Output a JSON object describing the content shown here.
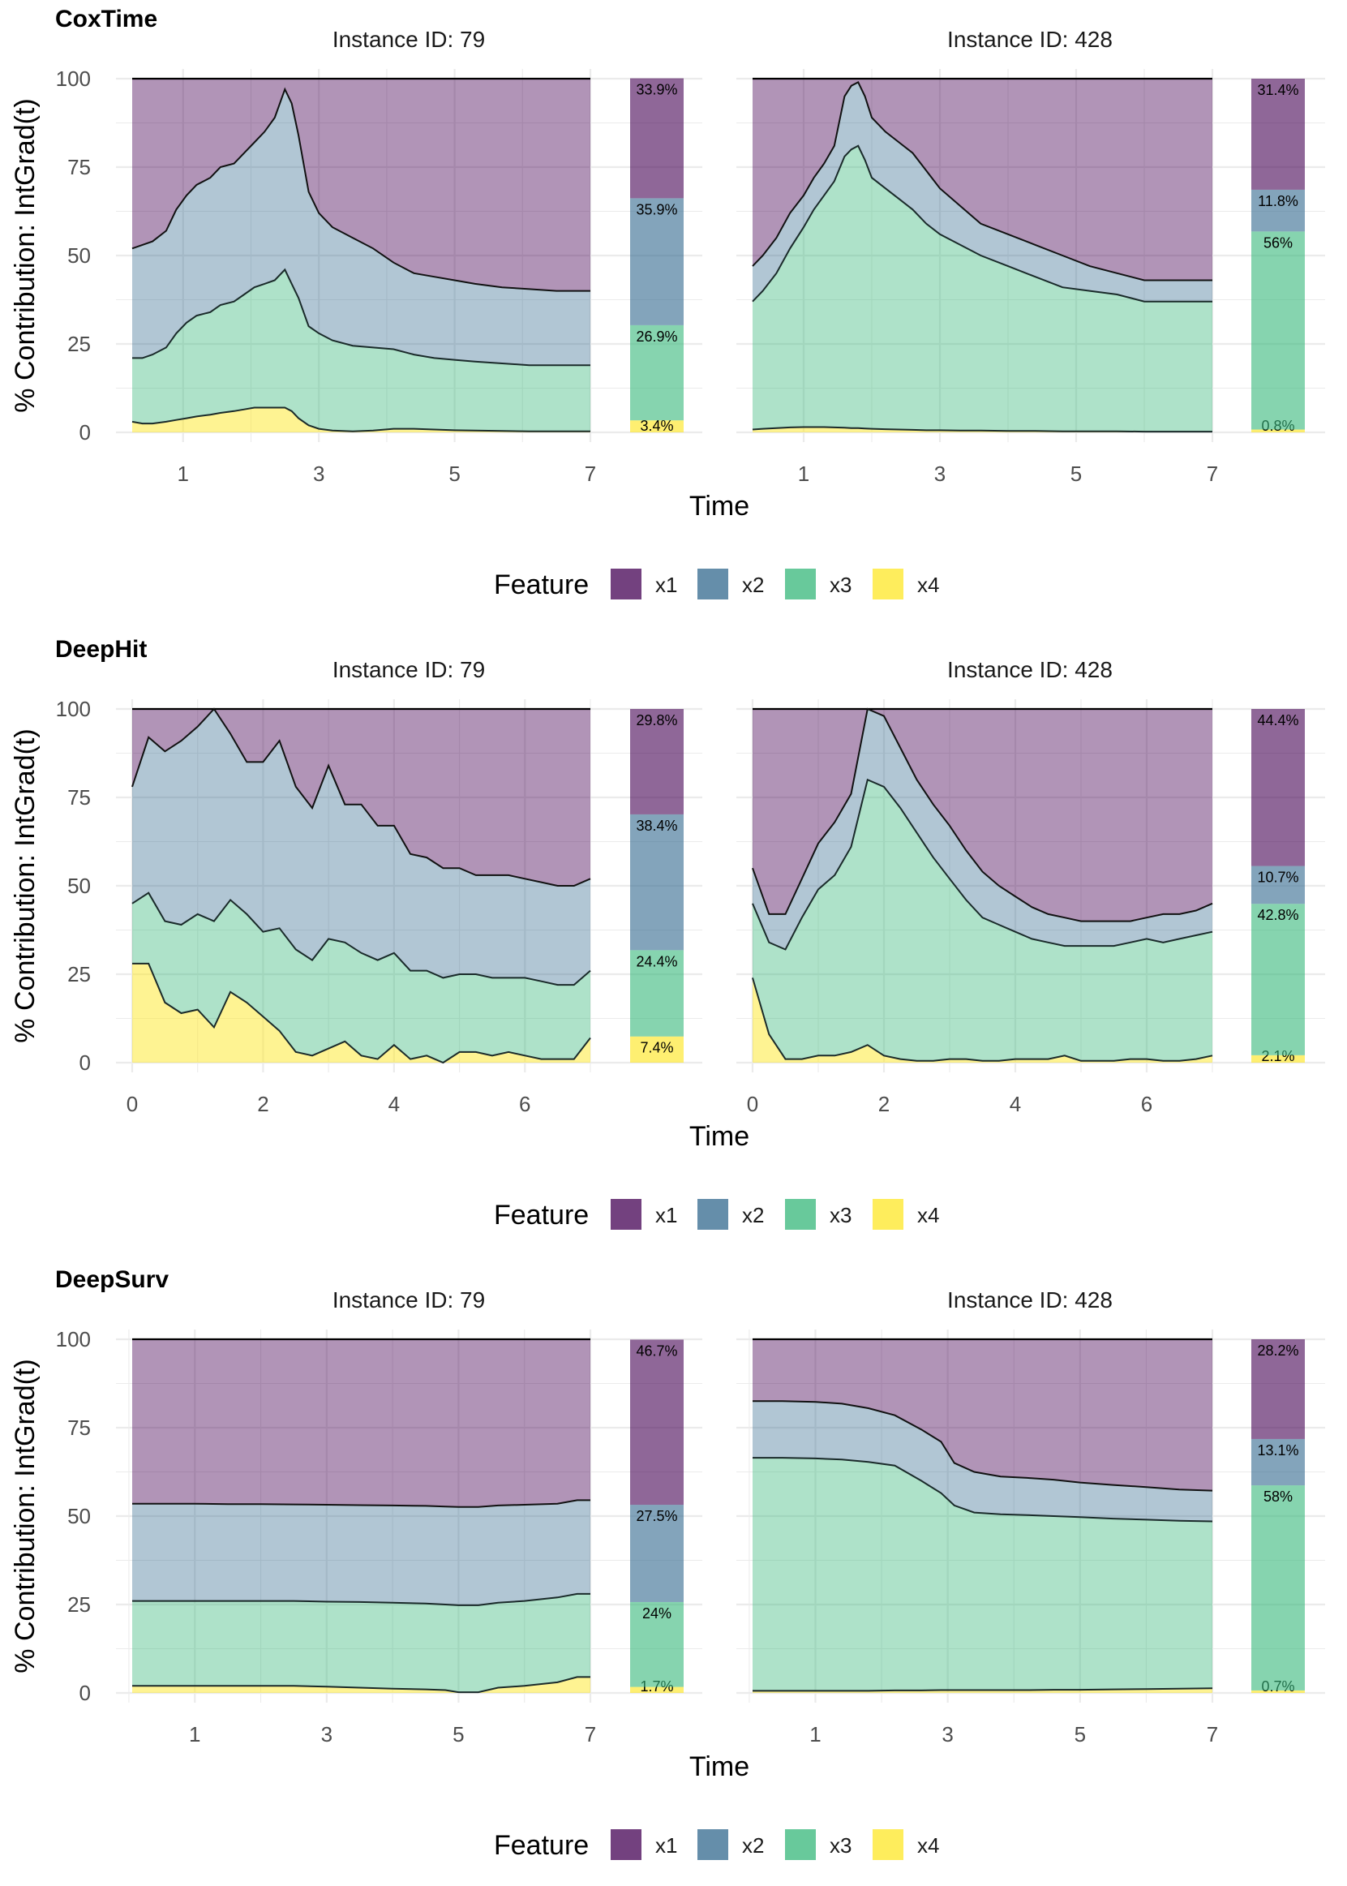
{
  "colors": {
    "x1": "#440154",
    "x2": "#31688e",
    "x3": "#35b779",
    "x4": "#fde725",
    "grid": "#ebebeb"
  },
  "chart_data": [
    {
      "type": "area",
      "title": "CoxTime",
      "xlabel": "Time",
      "ylabel": "% Contribution: IntGrad(t)",
      "ylim": [
        0,
        100
      ],
      "yticks": [
        "0",
        "25",
        "50",
        "75",
        "100"
      ],
      "legend": {
        "title": "Feature",
        "labels": [
          "x1",
          "x2",
          "x3",
          "x4"
        ],
        "position": "bottom"
      },
      "panels": [
        {
          "facet": "Instance ID: 79",
          "xlim": [
            0.25,
            7
          ],
          "xticks": [
            1,
            3,
            5,
            7
          ],
          "xtick_labels": [
            "1",
            "3",
            "5",
            "7"
          ],
          "t": [
            0.25,
            0.4,
            0.55,
            0.75,
            0.9,
            1.05,
            1.2,
            1.4,
            1.55,
            1.75,
            1.9,
            2.05,
            2.2,
            2.35,
            2.5,
            2.6,
            2.7,
            2.85,
            3.0,
            3.2,
            3.5,
            3.8,
            4.1,
            4.4,
            4.7,
            5.0,
            5.3,
            5.7,
            6.1,
            6.5,
            7.0
          ],
          "cum_x4x3x2": [
            52,
            53,
            54,
            57,
            63,
            67,
            70,
            72,
            75,
            76,
            79,
            82,
            85,
            89,
            97,
            93,
            84,
            68,
            62,
            58,
            55,
            52,
            48,
            45,
            44,
            43,
            42,
            41,
            40.5,
            40,
            40
          ],
          "cum_x4x3": [
            21,
            21,
            22,
            24,
            28,
            31,
            33,
            34,
            36,
            37,
            39,
            41,
            42,
            43,
            46,
            42,
            38,
            30,
            28,
            26,
            24.5,
            24,
            23.5,
            22,
            21,
            20.5,
            20,
            19.5,
            19,
            19,
            19
          ],
          "cum_x4": [
            3,
            2.5,
            2.5,
            3,
            3.5,
            4,
            4.5,
            5,
            5.5,
            6,
            6.5,
            7,
            7,
            7,
            7,
            6,
            4,
            2,
            1,
            0.5,
            0.3,
            0.5,
            1,
            1,
            0.8,
            0.6,
            0.5,
            0.4,
            0.3,
            0.3,
            0.3
          ],
          "bar": {
            "x4": 3.4,
            "x3": 26.9,
            "x2": 35.9,
            "x1": 33.9
          },
          "bar_labels": [
            "3.4%",
            "26.9%",
            "35.9%",
            "33.9%"
          ]
        },
        {
          "facet": "Instance ID: 428",
          "xlim": [
            0.25,
            7
          ],
          "xticks": [
            1,
            3,
            5,
            7
          ],
          "xtick_labels": [
            "1",
            "3",
            "5",
            "7"
          ],
          "t": [
            0.25,
            0.4,
            0.6,
            0.8,
            1.0,
            1.15,
            1.3,
            1.45,
            1.6,
            1.7,
            1.8,
            1.9,
            2.0,
            2.2,
            2.4,
            2.6,
            2.8,
            3.0,
            3.3,
            3.6,
            4.0,
            4.4,
            4.8,
            5.2,
            5.6,
            6.0,
            6.5,
            7.0
          ],
          "cum_x4x3x2": [
            47,
            50,
            55,
            62,
            67,
            72,
            76,
            81,
            95,
            98,
            99,
            95,
            89,
            85,
            82,
            79,
            74,
            69,
            64,
            59,
            56,
            53,
            50,
            47,
            45,
            43,
            43,
            43
          ],
          "cum_x4x3": [
            37,
            40,
            45,
            52,
            58,
            63,
            67,
            71,
            78,
            80,
            81,
            77,
            72,
            69,
            66,
            63,
            59,
            56,
            53,
            50,
            47,
            44,
            41,
            40,
            39,
            37,
            37,
            37
          ],
          "cum_x4": [
            0.8,
            1,
            1.2,
            1.4,
            1.5,
            1.5,
            1.5,
            1.4,
            1.3,
            1.2,
            1.2,
            1.1,
            1,
            0.9,
            0.8,
            0.7,
            0.6,
            0.6,
            0.5,
            0.5,
            0.4,
            0.4,
            0.3,
            0.3,
            0.3,
            0.2,
            0.2,
            0.2
          ],
          "bar": {
            "x4": 0.8,
            "x3": 56,
            "x2": 11.8,
            "x1": 31.4
          },
          "bar_labels": [
            "0.8%",
            "56%",
            "11.8%",
            "31.4%"
          ]
        }
      ]
    },
    {
      "type": "area",
      "title": "DeepHit",
      "xlabel": "Time",
      "ylabel": "% Contribution: IntGrad(t)",
      "ylim": [
        0,
        100
      ],
      "yticks": [
        "0",
        "25",
        "50",
        "75",
        "100"
      ],
      "legend": {
        "title": "Feature",
        "labels": [
          "x1",
          "x2",
          "x3",
          "x4"
        ],
        "position": "bottom"
      },
      "panels": [
        {
          "facet": "Instance ID: 79",
          "xlim": [
            0,
            7
          ],
          "xticks": [
            0,
            2,
            4,
            6
          ],
          "xtick_labels": [
            "0",
            "2",
            "4",
            "6"
          ],
          "t": [
            0,
            0.25,
            0.5,
            0.75,
            1.0,
            1.25,
            1.5,
            1.75,
            2.0,
            2.25,
            2.5,
            2.75,
            3.0,
            3.25,
            3.5,
            3.75,
            4.0,
            4.25,
            4.5,
            4.75,
            5.0,
            5.25,
            5.5,
            5.75,
            6.0,
            6.25,
            6.5,
            6.75,
            7.0
          ],
          "cum_x4x3x2": [
            78,
            92,
            88,
            91,
            95,
            100,
            93,
            85,
            85,
            91,
            78,
            72,
            84,
            73,
            73,
            67,
            67,
            59,
            58,
            55,
            55,
            53,
            53,
            53,
            52,
            51,
            50,
            50,
            52
          ],
          "cum_x4x3": [
            45,
            48,
            40,
            39,
            42,
            40,
            46,
            42,
            37,
            38,
            32,
            29,
            35,
            34,
            31,
            29,
            31,
            26,
            26,
            24,
            25,
            25,
            24,
            24,
            24,
            23,
            22,
            22,
            26
          ],
          "cum_x4": [
            28,
            28,
            17,
            14,
            15,
            10,
            20,
            17,
            13,
            9,
            3,
            2,
            4,
            6,
            2,
            1,
            5,
            1,
            2,
            0,
            3,
            3,
            2,
            3,
            2,
            1,
            1,
            1,
            7
          ],
          "bar": {
            "x4": 7.4,
            "x3": 24.4,
            "x2": 38.4,
            "x1": 29.8
          },
          "bar_labels": [
            "7.4%",
            "24.4%",
            "38.4%",
            "29.8%"
          ]
        },
        {
          "facet": "Instance ID: 428",
          "xlim": [
            0,
            7
          ],
          "xticks": [
            0,
            2,
            4,
            6
          ],
          "xtick_labels": [
            "0",
            "2",
            "4",
            "6"
          ],
          "t": [
            0,
            0.25,
            0.5,
            0.75,
            1.0,
            1.25,
            1.5,
            1.75,
            2.0,
            2.25,
            2.5,
            2.75,
            3.0,
            3.25,
            3.5,
            3.75,
            4.0,
            4.25,
            4.5,
            4.75,
            5.0,
            5.25,
            5.5,
            5.75,
            6.0,
            6.25,
            6.5,
            6.75,
            7.0
          ],
          "cum_x4x3x2": [
            55,
            42,
            42,
            52,
            62,
            68,
            76,
            100,
            98,
            89,
            80,
            73,
            67,
            60,
            54,
            50,
            47,
            44,
            42,
            41,
            40,
            40,
            40,
            40,
            41,
            42,
            42,
            43,
            45
          ],
          "cum_x4x3": [
            45,
            34,
            32,
            41,
            49,
            53,
            61,
            80,
            78,
            72,
            65,
            58,
            52,
            46,
            41,
            39,
            37,
            35,
            34,
            33,
            33,
            33,
            33,
            34,
            35,
            34,
            35,
            36,
            37
          ],
          "cum_x4": [
            24,
            8,
            1,
            1,
            2,
            2,
            3,
            5,
            2,
            1,
            0.5,
            0.5,
            1,
            1,
            0.5,
            0.5,
            1,
            1,
            1,
            2,
            0.5,
            0.5,
            0.5,
            1,
            1,
            0.5,
            0.5,
            1,
            2
          ],
          "bar": {
            "x4": 2.1,
            "x3": 42.8,
            "x2": 10.7,
            "x1": 44.4
          },
          "bar_labels": [
            "2.1%",
            "42.8%",
            "10.7%",
            "44.4%"
          ]
        }
      ]
    },
    {
      "type": "area",
      "title": "DeepSurv",
      "xlabel": "Time",
      "ylabel": "% Contribution: IntGrad(t)",
      "ylim": [
        0,
        100
      ],
      "yticks": [
        "0",
        "25",
        "50",
        "75",
        "100"
      ],
      "legend": {
        "title": "Feature",
        "labels": [
          "x1",
          "x2",
          "x3",
          "x4"
        ],
        "position": "bottom"
      },
      "panels": [
        {
          "facet": "Instance ID: 79",
          "xlim": [
            0.05,
            7
          ],
          "xticks": [
            1,
            3,
            5,
            7
          ],
          "xtick_labels": [
            "1",
            "3",
            "5",
            "7"
          ],
          "t": [
            0.05,
            0.5,
            1.0,
            1.5,
            2.0,
            2.5,
            3.0,
            3.5,
            4.0,
            4.5,
            4.8,
            5.0,
            5.3,
            5.6,
            6.0,
            6.5,
            6.8,
            7.0
          ],
          "cum_x4x3x2": [
            53.5,
            53.5,
            53.5,
            53.4,
            53.4,
            53.3,
            53.2,
            53.1,
            53,
            52.9,
            52.7,
            52.6,
            52.6,
            53,
            53.2,
            53.5,
            54.5,
            54.5
          ],
          "cum_x4x3": [
            26,
            26,
            26,
            26,
            26,
            26,
            25.8,
            25.7,
            25.5,
            25.3,
            25,
            24.8,
            24.8,
            25.5,
            26,
            27,
            28,
            28
          ],
          "cum_x4": [
            2,
            2,
            2,
            2,
            2,
            2,
            1.8,
            1.5,
            1.2,
            1,
            0.8,
            0.2,
            0.2,
            1.5,
            2,
            3,
            4.5,
            4.5
          ],
          "bar": {
            "x4": 1.7,
            "x3": 24,
            "x2": 27.5,
            "x1": 46.7
          },
          "bar_labels": [
            "1.7%",
            "24%",
            "27.5%",
            "46.7%"
          ]
        },
        {
          "facet": "Instance ID: 428",
          "xlim": [
            0.05,
            7
          ],
          "xticks": [
            1,
            3,
            5,
            7
          ],
          "xtick_labels": [
            "1",
            "3",
            "5",
            "7"
          ],
          "t": [
            0.05,
            0.5,
            1.0,
            1.4,
            1.8,
            2.2,
            2.6,
            2.9,
            3.1,
            3.4,
            3.8,
            4.2,
            4.6,
            5.0,
            5.5,
            6.0,
            6.5,
            7.0
          ],
          "cum_x4x3x2": [
            82.5,
            82.5,
            82.3,
            81.8,
            80.5,
            78.5,
            74.5,
            71,
            65,
            62.5,
            61.2,
            60.8,
            60.3,
            59.5,
            58.8,
            58.2,
            57.5,
            57.2
          ],
          "cum_x4x3": [
            66.5,
            66.5,
            66.3,
            66,
            65.3,
            64.3,
            60,
            56.5,
            53,
            51,
            50.5,
            50.3,
            50,
            49.7,
            49.3,
            49,
            48.7,
            48.5
          ],
          "cum_x4": [
            0.6,
            0.6,
            0.6,
            0.6,
            0.6,
            0.7,
            0.7,
            0.8,
            0.8,
            0.8,
            0.8,
            0.8,
            0.9,
            0.9,
            1,
            1.1,
            1.2,
            1.3
          ],
          "bar": {
            "x4": 0.7,
            "x3": 58,
            "x2": 13.1,
            "x1": 28.2
          },
          "bar_labels": [
            "0.7%",
            "58%",
            "13.1%",
            "28.2%"
          ]
        }
      ]
    }
  ]
}
